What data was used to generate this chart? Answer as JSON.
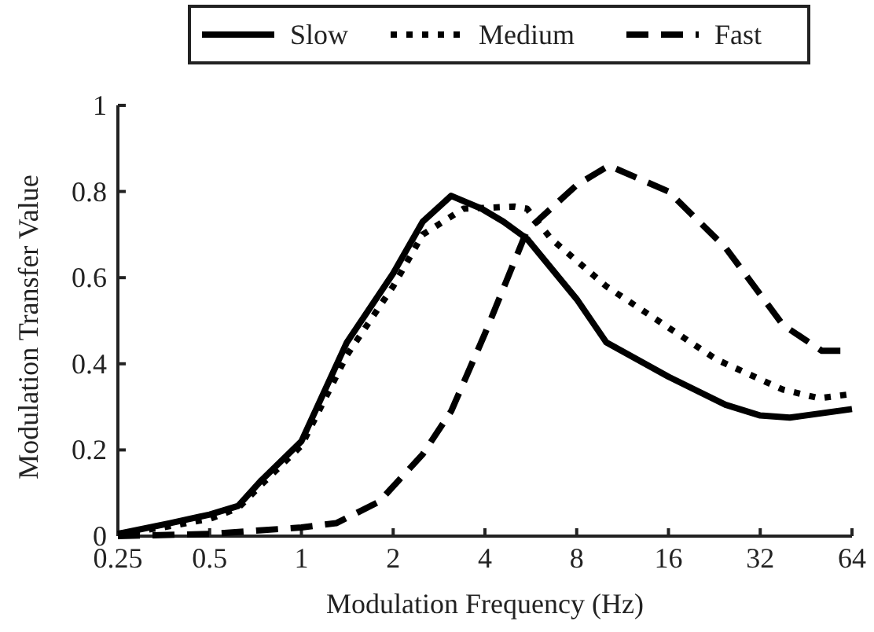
{
  "chart_data": {
    "type": "line",
    "xlabel": "Modulation Frequency (Hz)",
    "ylabel": "Modulation Transfer Value",
    "log": "x",
    "xlim": [
      0.25,
      64
    ],
    "xticks": [
      0.25,
      0.5,
      1,
      2,
      4,
      8,
      16,
      32,
      64
    ],
    "ylim": [
      0,
      1
    ],
    "yticks": [
      0,
      0.2,
      0.4,
      0.6,
      0.8,
      1
    ],
    "legend": "top",
    "grid": false,
    "series": [
      {
        "name": "Slow",
        "color": "#000000",
        "line_style": "solid",
        "x": [
          0.25,
          0.37,
          0.5,
          0.62,
          0.74,
          1,
          1.41,
          2,
          2.5,
          3.1,
          3.9,
          4.6,
          5.5,
          8,
          10,
          16,
          24.6,
          32,
          40,
          64
        ],
        "values": [
          0.005,
          0.03,
          0.05,
          0.07,
          0.13,
          0.22,
          0.45,
          0.61,
          0.73,
          0.79,
          0.76,
          0.73,
          0.69,
          0.55,
          0.45,
          0.37,
          0.305,
          0.28,
          0.275,
          0.295
        ]
      },
      {
        "name": "Medium",
        "color": "#000000",
        "line_style": "dotted",
        "x": [
          0.25,
          0.35,
          0.5,
          0.62,
          0.74,
          1,
          1.41,
          2,
          2.5,
          3.4,
          5,
          5.5,
          6.6,
          10,
          23,
          38,
          50,
          64
        ],
        "values": [
          0.005,
          0.02,
          0.04,
          0.065,
          0.12,
          0.21,
          0.42,
          0.58,
          0.7,
          0.76,
          0.765,
          0.76,
          0.69,
          0.58,
          0.41,
          0.34,
          0.32,
          0.33
        ]
      },
      {
        "name": "Fast",
        "color": "#000000",
        "line_style": "dashed",
        "x": [
          0.25,
          0.5,
          1,
          1.3,
          1.8,
          2.5,
          3.1,
          4,
          5.5,
          8,
          10.2,
          16,
          24.6,
          38,
          51,
          64
        ],
        "values": [
          0,
          0.005,
          0.02,
          0.03,
          0.08,
          0.19,
          0.29,
          0.47,
          0.71,
          0.815,
          0.86,
          0.8,
          0.67,
          0.49,
          0.43,
          0.43
        ]
      }
    ]
  }
}
